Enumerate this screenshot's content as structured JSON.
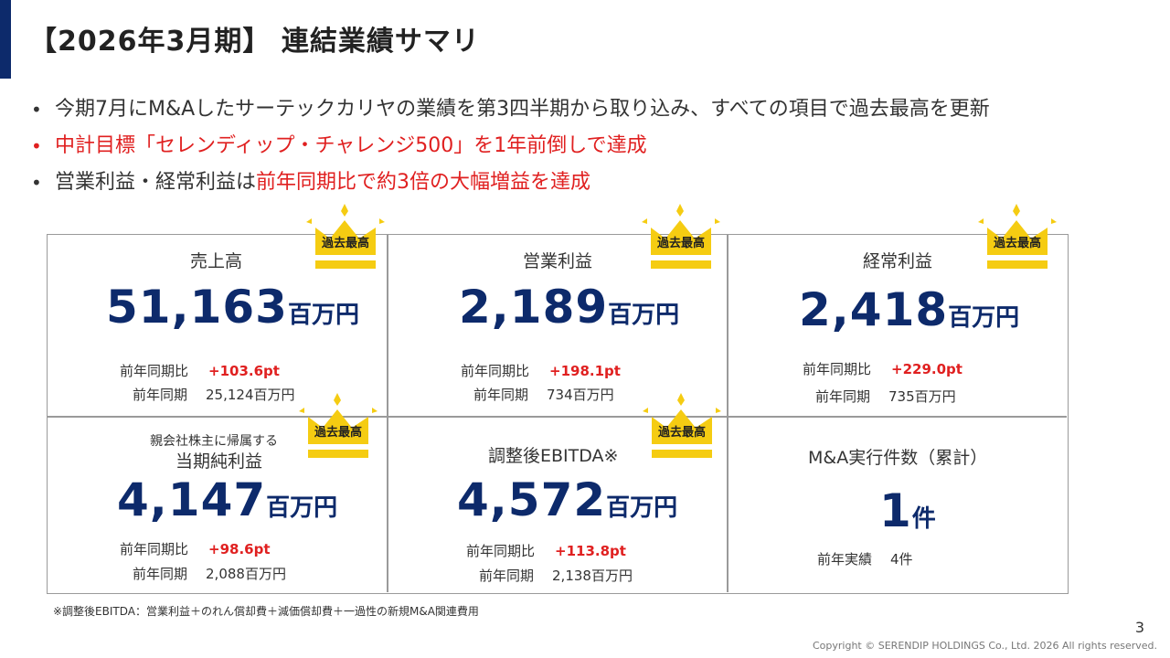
{
  "header": {
    "title": "【2026年3月期】 連結業績サマリ"
  },
  "bullets": [
    {
      "text": "今期7月にM&Aしたサーテックカリヤの業績を第3四半期から取り込み、すべての項目で過去最高を更新"
    },
    {
      "text": "中計目標「セレンディップ・チャレンジ500」を1年前倒しで達成"
    },
    {
      "prefix": "営業利益・経常利益は",
      "highlight": "前年同期比で約3倍の大幅増益を達成"
    }
  ],
  "badge": {
    "record_label": "過去最高"
  },
  "metrics": [
    {
      "label": "売上高",
      "value": "51,163",
      "unit": "百万円",
      "yoy_label": "前年同期比",
      "yoy_value": "+103.6pt",
      "prior_label": "前年同期",
      "prior_value": "25,124百万円"
    },
    {
      "label": "営業利益",
      "value": "2,189",
      "unit": "百万円",
      "yoy_label": "前年同期比",
      "yoy_value": "+198.1pt",
      "prior_label": "前年同期",
      "prior_value": "734百万円"
    },
    {
      "label": "経常利益",
      "value": "2,418",
      "unit": "百万円",
      "yoy_label": "前年同期比",
      "yoy_value": "+229.0pt",
      "prior_label": "前年同期",
      "prior_value": "735百万円"
    },
    {
      "sublabel": "親会社株主に帰属する",
      "label": "当期純利益",
      "value": "4,147",
      "unit": "百万円",
      "yoy_label": "前年同期比",
      "yoy_value": "+98.6pt",
      "prior_label": "前年同期",
      "prior_value": "2,088百万円"
    },
    {
      "label": "調整後EBITDA※",
      "value": "4,572",
      "unit": "百万円",
      "yoy_label": "前年同期比",
      "yoy_value": "+113.8pt",
      "prior_label": "前年同期",
      "prior_value": "2,138百万円"
    },
    {
      "label": "M&A実行件数（累計）",
      "value": "1",
      "unit": "件",
      "prior_label": "前年実績",
      "prior_value": "4件"
    }
  ],
  "footnote": "※調整後EBITDA：営業利益＋のれん償却費＋減価償却費＋一過性の新規M&A関連費用",
  "page_number": "3",
  "copyright": "Copyright © SERENDIP HOLDINGS Co., Ltd. 2026 All rights reserved.",
  "colors": {
    "accent": "#0d2a6b",
    "highlight_red": "#e02020",
    "crown_gold": "#f5cc12"
  }
}
